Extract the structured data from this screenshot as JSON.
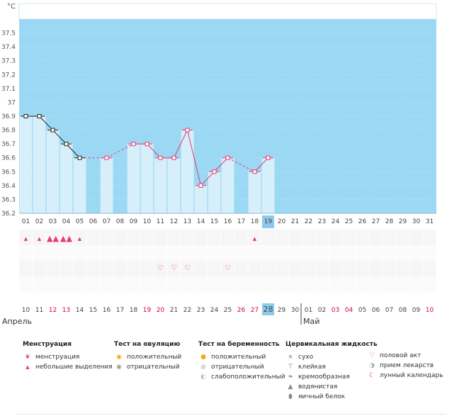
{
  "colors": {
    "plot_bg": "#9ad8f3",
    "bar_fill": "#d6effb",
    "line": "#e63a72",
    "marker_black": "#222222",
    "today_bg": "#8ccbea",
    "accent_red": "#d6004c",
    "grid_row_bg": "#f6f6f6"
  },
  "chart_data": {
    "type": "bar",
    "ylabel": "°C",
    "ylim": [
      36.2,
      37.6
    ],
    "yticks": [
      "36.2",
      "36.3",
      "36.4",
      "36.5",
      "36.6",
      "36.7",
      "36.8",
      "36.9",
      "37",
      "37.1",
      "37.2",
      "37.3",
      "37.4",
      "37.5"
    ],
    "categories": [
      "01",
      "02",
      "03",
      "04",
      "05",
      "06",
      "07",
      "08",
      "09",
      "10",
      "11",
      "12",
      "13",
      "14",
      "15",
      "16",
      "17",
      "18",
      "19",
      "20",
      "21",
      "22",
      "23",
      "24",
      "25",
      "26",
      "27",
      "28",
      "29",
      "30",
      "31"
    ],
    "values": [
      36.9,
      36.9,
      36.8,
      36.7,
      36.6,
      null,
      36.6,
      null,
      36.7,
      36.7,
      36.6,
      36.6,
      36.8,
      36.4,
      36.5,
      36.6,
      null,
      36.5,
      36.6,
      null,
      null,
      null,
      null,
      null,
      null,
      null,
      null,
      null,
      null,
      null,
      null
    ],
    "marker_color": [
      "black",
      "black",
      "black",
      "black",
      "black",
      "pink",
      "pink",
      "pink",
      "pink",
      "pink",
      "pink",
      "pink",
      "pink",
      "pink",
      "pink",
      "pink",
      "pink",
      "pink",
      "pink"
    ],
    "segments": [
      {
        "from": 0,
        "to": 4,
        "style": "solid",
        "color": "black"
      },
      {
        "from": 4,
        "to": 6,
        "style": "dashed"
      },
      {
        "from": 6,
        "to": 8,
        "style": "dashed"
      },
      {
        "from": 8,
        "to": 15,
        "style": "solid"
      },
      {
        "from": 15,
        "to": 17,
        "style": "dashed"
      },
      {
        "from": 17,
        "to": 18,
        "style": "solid"
      }
    ],
    "today_index": 18,
    "menstruation_rows": {
      "heavy": [
        2,
        3
      ],
      "light": [
        0,
        1,
        4,
        17
      ]
    },
    "intercourse_days": [
      10,
      11,
      12,
      15
    ],
    "calendar_days": [
      "10",
      "11",
      "12",
      "13",
      "14",
      "15",
      "16",
      "17",
      "18",
      "19",
      "20",
      "21",
      "22",
      "23",
      "24",
      "25",
      "26",
      "27",
      "28",
      "29",
      "30",
      "01",
      "02",
      "03",
      "04",
      "05",
      "06",
      "07",
      "08",
      "09",
      "10"
    ],
    "calendar_red": [
      2,
      3,
      9,
      10,
      16,
      17,
      23,
      24,
      30
    ],
    "today_calendar_index": 18,
    "month_break_index": 21,
    "month_left": "Апрель",
    "month_right": "Май"
  },
  "legend": {
    "menstruation": {
      "title": "Менструация",
      "items": [
        {
          "icon": "drop-icon",
          "label": "менструация"
        },
        {
          "icon": "small-drop-icon",
          "label": "небольшие выделения"
        }
      ]
    },
    "ovulation": {
      "title": "Тест на овуляцию",
      "items": [
        {
          "icon": "sun-positive-icon",
          "label": "положительный"
        },
        {
          "icon": "sun-negative-icon",
          "label": "отрицательный"
        }
      ]
    },
    "pregnancy": {
      "title": "Тест на беременность",
      "items": [
        {
          "icon": "face-positive-icon",
          "label": "положительный"
        },
        {
          "icon": "face-negative-icon",
          "label": "отрицательный"
        },
        {
          "icon": "face-weak-icon",
          "label": "слабоположительный"
        }
      ]
    },
    "cervical": {
      "title": "Цервикальная жидкость",
      "items": [
        {
          "icon": "cross-icon",
          "label": "сухо"
        },
        {
          "icon": "t-icon",
          "label": "клейкая"
        },
        {
          "icon": "blob-icon",
          "label": "кремообразная"
        },
        {
          "icon": "water-drop-icon",
          "label": "водянистая"
        },
        {
          "icon": "egg-icon",
          "label": "яичный белок"
        }
      ]
    },
    "other": {
      "items": [
        {
          "icon": "heart-icon",
          "label": "половой акт"
        },
        {
          "icon": "pill-icon",
          "label": "прием лекарств"
        },
        {
          "icon": "moon-icon",
          "label": "лунный календарь"
        }
      ]
    }
  }
}
